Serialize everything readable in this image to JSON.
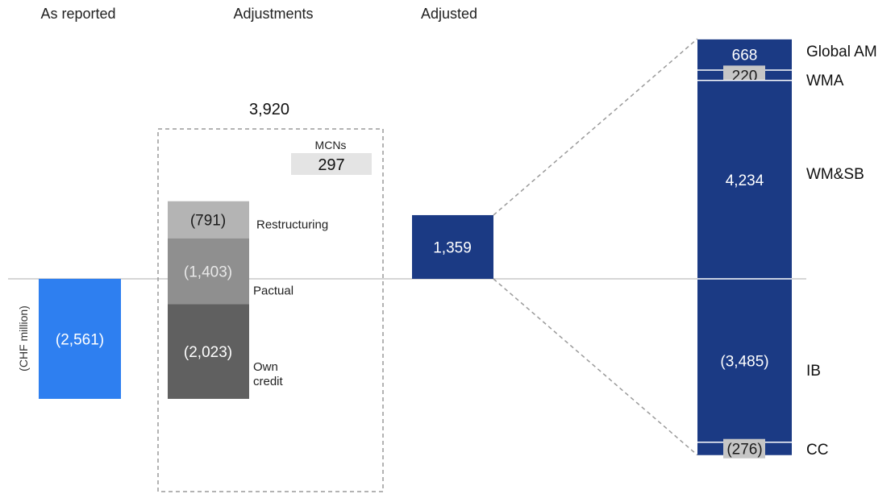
{
  "columns": {
    "as_reported": "As reported",
    "adjustments": "Adjustments",
    "adjusted": "Adjusted"
  },
  "unit_label": "(CHF million)",
  "colors": {
    "reported": "#2e7ff0",
    "adjusted": "#1b3a84",
    "restructuring": "#b4b4b4",
    "pactual": "#8f8f8f",
    "own_credit": "#606060",
    "mcn_box": "#e4e4e4",
    "bracket_line": "#9a9a9a",
    "zero_line": "#c8c8c8",
    "callout_fill": "#c6c6c6"
  },
  "chart_data": {
    "type": "bar",
    "unit": "CHF million",
    "as_reported": {
      "value": -2561,
      "label": "(2,561)"
    },
    "adjustments": {
      "total_label": "3,920",
      "items": [
        {
          "name": "Restructuring",
          "value": -791,
          "label": "(791)"
        },
        {
          "name": "Pactual",
          "value": -1403,
          "label": "(1,403)"
        },
        {
          "name": "Own credit",
          "value": -2023,
          "label": "(2,023)"
        }
      ],
      "mcn": {
        "name": "MCNs",
        "value": 297,
        "label": "297"
      }
    },
    "adjusted": {
      "value": 1359,
      "label": "1,359"
    },
    "segments": [
      {
        "name": "Global AM",
        "value": 668,
        "label": "668"
      },
      {
        "name": "WMA",
        "value": 220,
        "label": "220"
      },
      {
        "name": "WM&SB",
        "value": 4234,
        "label": "4,234"
      },
      {
        "name": "IB",
        "value": -3485,
        "label": "(3,485)"
      },
      {
        "name": "CC",
        "value": -276,
        "label": "(276)"
      }
    ],
    "ylim": [
      -3761,
      5122
    ],
    "grid": false,
    "legend": "none"
  }
}
